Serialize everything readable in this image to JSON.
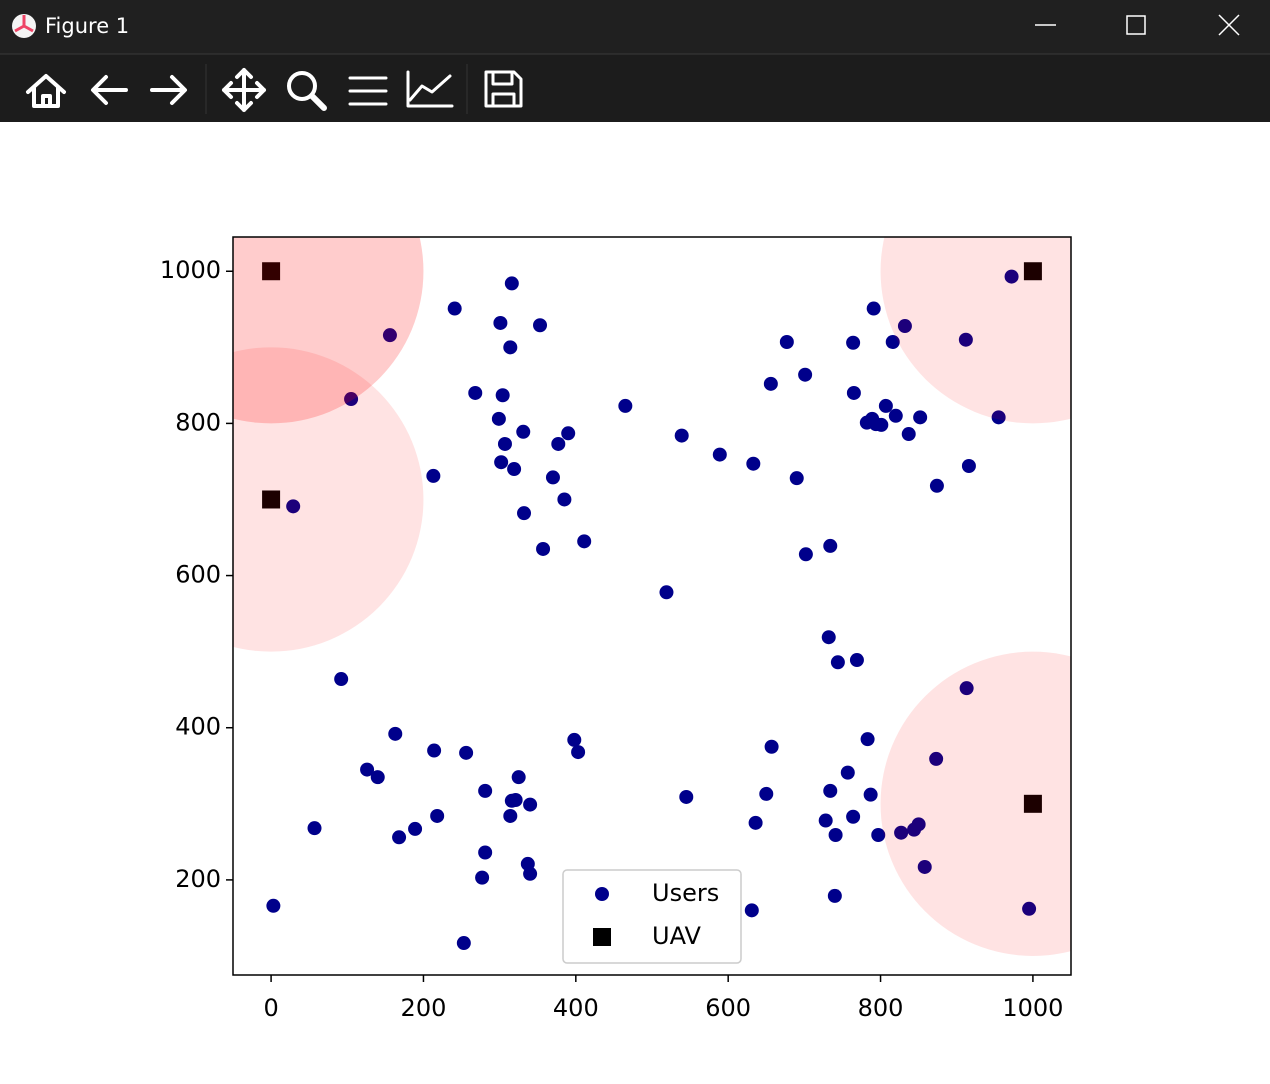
{
  "window": {
    "title": "Figure 1"
  },
  "chart_data": {
    "type": "scatter",
    "xlim": [
      -50,
      1050
    ],
    "ylim": [
      75,
      1045
    ],
    "xticks": [
      0,
      200,
      400,
      600,
      800,
      1000
    ],
    "yticks": [
      200,
      400,
      600,
      800,
      1000
    ],
    "legend": "lower center",
    "series": [
      {
        "name": "Users",
        "color": "#00008b",
        "marker": "circle",
        "x": [
          3,
          156,
          105,
          29,
          92,
          57,
          163,
          126,
          140,
          168,
          189,
          214,
          218,
          213,
          241,
          256,
          281,
          281,
          277,
          253,
          268,
          301,
          316,
          314,
          304,
          299,
          307,
          302,
          319,
          331,
          332,
          353,
          377,
          390,
          370,
          385,
          357,
          411,
          325,
          316,
          321,
          314,
          340,
          337,
          340,
          398,
          403,
          465,
          519,
          539,
          545,
          589,
          633,
          631,
          636,
          650,
          657,
          656,
          677,
          701,
          690,
          702,
          734,
          732,
          744,
          769,
          728,
          734,
          741,
          740,
          757,
          764,
          787,
          783,
          797,
          764,
          791,
          765,
          782,
          789,
          794,
          801,
          807,
          816,
          820,
          832,
          837,
          852,
          874,
          912,
          916,
          955,
          972,
          913,
          873,
          827,
          844,
          850,
          858,
          995
        ],
        "y": [
          166,
          916,
          832,
          691,
          464,
          268,
          392,
          345,
          335,
          256,
          267,
          370,
          284,
          731,
          951,
          367,
          317,
          236,
          203,
          117,
          840,
          932,
          984,
          900,
          837,
          806,
          773,
          749,
          740,
          789,
          682,
          929,
          773,
          787,
          729,
          700,
          635,
          645,
          335,
          304,
          305,
          284,
          299,
          221,
          208,
          384,
          368,
          823,
          578,
          784,
          309,
          759,
          747,
          160,
          275,
          313,
          375,
          852,
          907,
          864,
          728,
          628,
          639,
          519,
          486,
          489,
          278,
          317,
          259,
          179,
          341,
          283,
          312,
          385,
          259,
          906,
          951,
          840,
          801,
          806,
          799,
          798,
          823,
          907,
          810,
          928,
          786,
          808,
          718,
          910,
          744,
          808,
          993,
          452,
          359,
          262,
          266,
          273,
          217,
          162
        ]
      },
      {
        "name": "UAV",
        "color": "#000000",
        "marker": "square",
        "x": [
          0,
          0,
          1000,
          1000
        ],
        "y": [
          1000,
          700,
          1000,
          300
        ]
      }
    ],
    "coverage": {
      "radius": 200,
      "colors": [
        "rgba(255,0,0,0.2)",
        "rgba(255,0,0,0.11)",
        "rgba(255,0,0,0.11)",
        "rgba(255,0,0,0.11)"
      ]
    }
  }
}
